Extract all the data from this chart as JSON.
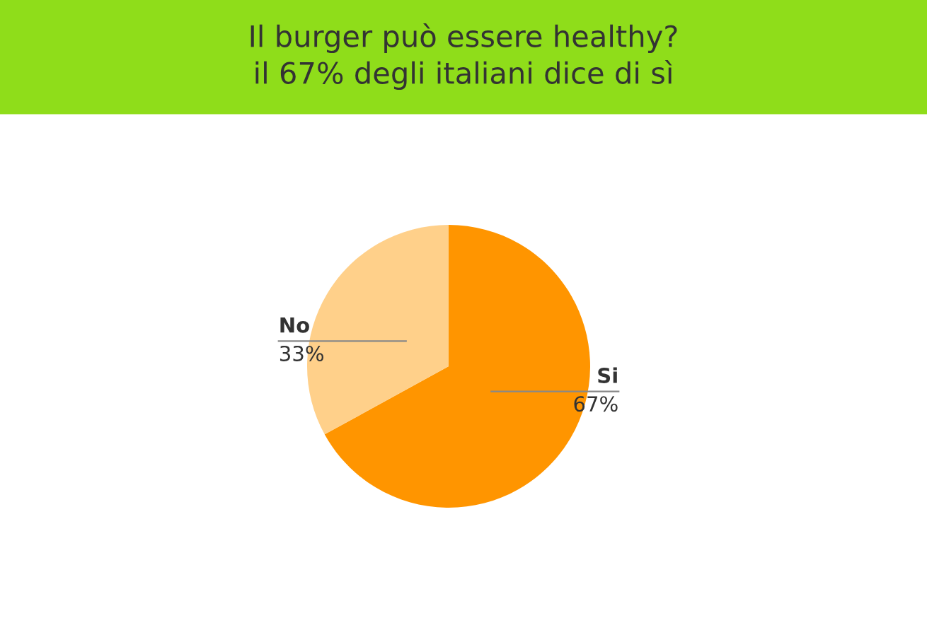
{
  "chart_data": {
    "type": "pie",
    "title": "Il burger può essere healthy?\nil 67% degli italiani dice di sì",
    "categories": [
      "Si",
      "No"
    ],
    "values": [
      67,
      33
    ],
    "value_labels": [
      "67%",
      "33%"
    ],
    "colors": [
      "#ff9500",
      "#ffd08a"
    ]
  }
}
